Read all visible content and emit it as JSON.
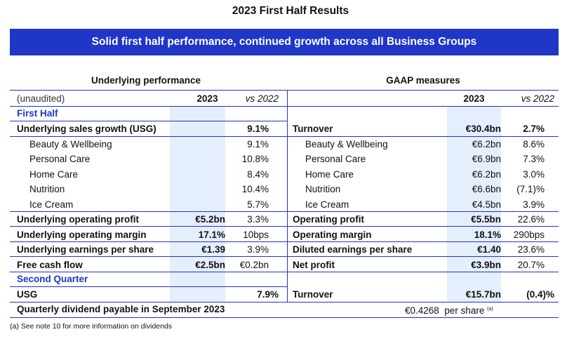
{
  "title": "2023 First Half Results",
  "banner": "Solid first half performance, continued growth across all Business Groups",
  "left_title": "Underlying performance",
  "right_title": "GAAP measures",
  "header": {
    "unaudited": "(unaudited)",
    "year": "2023",
    "vs": "vs 2022"
  },
  "first_half_label": "First Half",
  "second_quarter_label": "Second Quarter",
  "left_rows": [
    {
      "label": "Underlying sales growth (USG)",
      "value": "",
      "vs": "9.1%",
      "bold": true
    },
    {
      "label": "Beauty & Wellbeing",
      "value": "",
      "vs": "9.1%",
      "bold": false
    },
    {
      "label": "Personal Care",
      "value": "",
      "vs": "10.8%",
      "bold": false
    },
    {
      "label": "Home Care",
      "value": "",
      "vs": "8.4%",
      "bold": false
    },
    {
      "label": "Nutrition",
      "value": "",
      "vs": "10.4%",
      "bold": false
    },
    {
      "label": "Ice Cream",
      "value": "",
      "vs": "5.7%",
      "bold": false
    },
    {
      "label": "Underlying operating profit",
      "value": "€5.2bn",
      "vs": "3.3%",
      "bold": true
    },
    {
      "label": "Underlying operating margin",
      "value": "17.1%",
      "vs": "10bps",
      "bold": true
    },
    {
      "label": "Underlying earnings per share",
      "value": "€1.39",
      "vs": "3.9%",
      "bold": true
    },
    {
      "label": "Free cash flow",
      "value": "€2.5bn",
      "vs": "€0.2bn",
      "bold": true
    }
  ],
  "right_rows": [
    {
      "label": "Turnover",
      "value": "€30.4bn",
      "vs": "2.7%",
      "bold": true
    },
    {
      "label": "Beauty & Wellbeing",
      "value": "€6.2bn",
      "vs": "8.6%",
      "bold": false
    },
    {
      "label": "Personal Care",
      "value": "€6.9bn",
      "vs": "7.3%",
      "bold": false
    },
    {
      "label": "Home Care",
      "value": "€6.2bn",
      "vs": "3.0%",
      "bold": false
    },
    {
      "label": "Nutrition",
      "value": "€6.6bn",
      "vs": "(7.1)%",
      "bold": false
    },
    {
      "label": "Ice Cream",
      "value": "€4.5bn",
      "vs": "3.9%",
      "bold": false
    },
    {
      "label": "Operating profit",
      "value": "€5.5bn",
      "vs": "22.6%",
      "bold": true
    },
    {
      "label": "Operating margin",
      "value": "18.1%",
      "vs": "290bps",
      "bold": true
    },
    {
      "label": "Diluted earnings per share",
      "value": "€1.40",
      "vs": "23.6%",
      "bold": true
    },
    {
      "label": "Net profit",
      "value": "€3.9bn",
      "vs": "20.7%",
      "bold": true
    }
  ],
  "q2": {
    "left_label": "USG",
    "left_vs": "7.9%",
    "right_label": "Turnover",
    "right_value": "€15.7bn",
    "right_vs": "(0.4)%"
  },
  "dividend": {
    "label": "Quarterly dividend payable in September 2023",
    "value": "€0.4268",
    "unit": "per share",
    "note_mark": "(a)"
  },
  "footnote": "(a) See note 10 for more information on dividends"
}
